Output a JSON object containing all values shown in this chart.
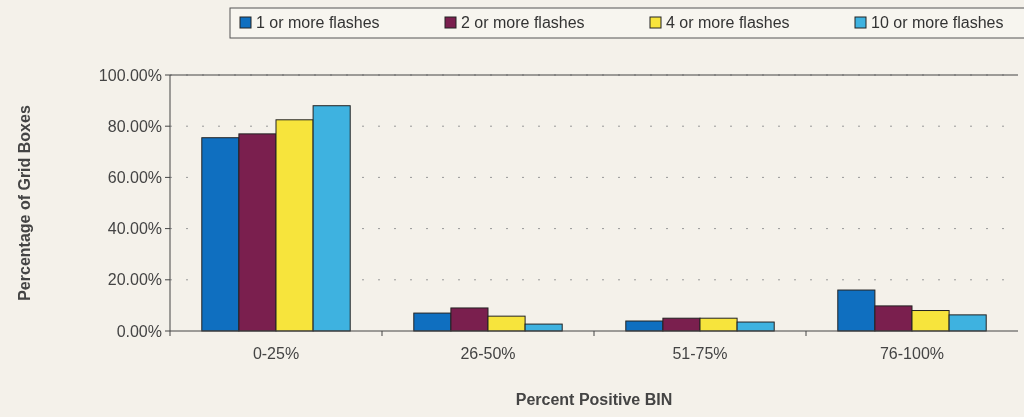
{
  "chart_data": {
    "type": "bar",
    "xlabel": "Percent Positive BIN",
    "ylabel": "Percentage of Grid Boxes",
    "categories": [
      "0-25%",
      "26-50%",
      "51-75%",
      "76-100%"
    ],
    "series": [
      {
        "name": "1 or more flashes",
        "color": "#0f6fc0",
        "values": [
          75.5,
          7,
          3.9,
          16
        ]
      },
      {
        "name": "2 or more flashes",
        "color": "#7a1f4e",
        "values": [
          77,
          9,
          5,
          9.8
        ]
      },
      {
        "name": "4 or more flashes",
        "color": "#f7e43c",
        "values": [
          82.5,
          5.8,
          5,
          8
        ]
      },
      {
        "name": "10 or more flashes",
        "color": "#3eb2e0",
        "values": [
          88,
          2.7,
          3.5,
          6.3
        ]
      }
    ],
    "ylim": [
      0,
      100
    ],
    "yticks": [
      {
        "value": 0,
        "label": "0.00%"
      },
      {
        "value": 20,
        "label": "20.00%"
      },
      {
        "value": 40,
        "label": "40.00%"
      },
      {
        "value": 60,
        "label": "60.00%"
      },
      {
        "value": 80,
        "label": "80.00%"
      },
      {
        "value": 100,
        "label": "100.00%"
      }
    ],
    "grid": "y",
    "legend": "top"
  }
}
